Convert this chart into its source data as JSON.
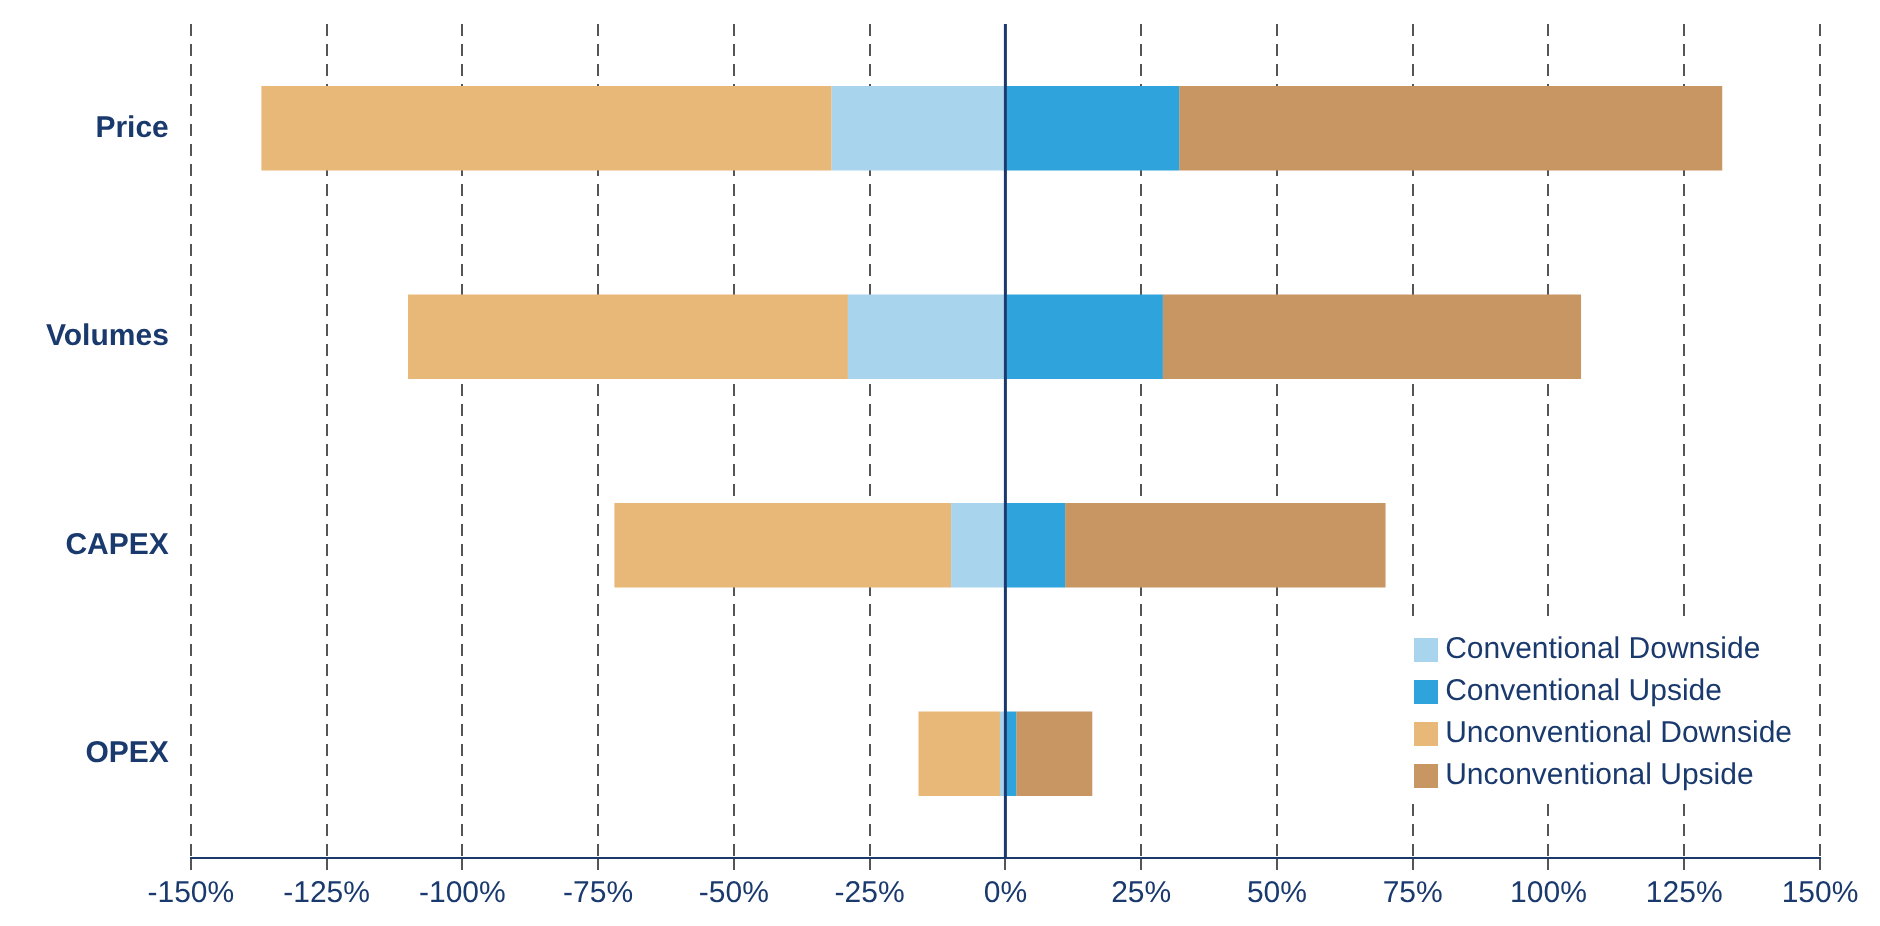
{
  "chart_data": {
    "type": "bar",
    "orientation": "horizontal",
    "stacked": true,
    "categories": [
      "Price",
      "Volumes",
      "CAPEX",
      "OPEX"
    ],
    "series": [
      {
        "name": "Conventional Downside",
        "color": "#a9d4ee",
        "values": [
          -32,
          -29,
          -10,
          -1
        ]
      },
      {
        "name": "Conventional Upside",
        "color": "#2ea3dc",
        "values": [
          32,
          29,
          11,
          2
        ]
      },
      {
        "name": "Unconventional Downside",
        "color": "#e8b878",
        "values": [
          -105,
          -81,
          -62,
          -15
        ]
      },
      {
        "name": "Unconventional Upside",
        "color": "#c89662",
        "values": [
          100,
          77,
          59,
          14
        ]
      }
    ],
    "xlim": [
      -150,
      150
    ],
    "xticks": [
      {
        "value": -150,
        "label": "-150%"
      },
      {
        "value": -125,
        "label": "-125%"
      },
      {
        "value": -100,
        "label": "-100%"
      },
      {
        "value": -75,
        "label": "-75%"
      },
      {
        "value": -50,
        "label": "-50%"
      },
      {
        "value": -25,
        "label": "-25%"
      },
      {
        "value": 0,
        "label": "0%"
      },
      {
        "value": 25,
        "label": "25%"
      },
      {
        "value": 50,
        "label": "50%"
      },
      {
        "value": 75,
        "label": "75%"
      },
      {
        "value": 100,
        "label": "100%"
      },
      {
        "value": 125,
        "label": "125%"
      },
      {
        "value": 150,
        "label": "150%"
      }
    ],
    "ref_lines": [
      {
        "axis": "x",
        "value": 0,
        "color": "#1a3a6e",
        "line_style": "solid"
      }
    ],
    "grid": "x",
    "legend": "bottom right"
  }
}
